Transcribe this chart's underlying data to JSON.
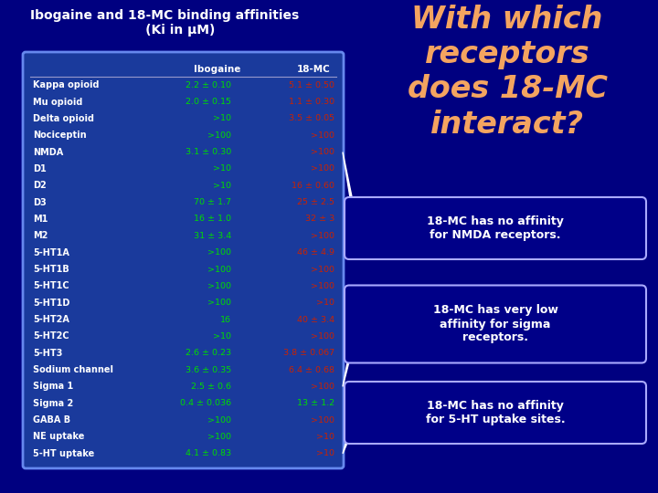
{
  "bg_color": "#000080",
  "table_bg": "#1a3a9c",
  "table_border": "#6688ee",
  "title_text": "Ibogaine and 18-MC binding affinities\n       (Ki in μM)",
  "title_color": "#ffffff",
  "big_question": "With which\nreceptors\ndoes 18-MC\ninteract?",
  "big_question_color": "#f4a460",
  "header_color": "#ffffff",
  "receptor_color": "#ffffff",
  "ibogaine_color": "#00dd00",
  "mc18_red": "#cc2200",
  "mc18_green": "#00dd00",
  "headers": [
    "",
    "Ibogaine",
    "18-MC"
  ],
  "rows": [
    [
      "Kappa opioid",
      "2.2 ± 0.10",
      "5.1 ± 0.50",
      "red"
    ],
    [
      "Mu opioid",
      "2.0 ± 0.15",
      "1.1 ± 0.30",
      "red"
    ],
    [
      "Delta opioid",
      ">10",
      "3.5 ± 0.05",
      "red"
    ],
    [
      "Nociceptin",
      ">100",
      ">100",
      "red"
    ],
    [
      "NMDA",
      "3.1 ± 0.30",
      ">100",
      "red"
    ],
    [
      "D1",
      ">10",
      ">100",
      "red"
    ],
    [
      "D2",
      ">10",
      "16 ± 0.60",
      "red"
    ],
    [
      "D3",
      "70 ± 1.7",
      "25 ± 2.5",
      "red"
    ],
    [
      "M1",
      "16 ± 1.0",
      "32 ± 3",
      "red"
    ],
    [
      "M2",
      "31 ± 3.4",
      ">100",
      "red"
    ],
    [
      "5-HT1A",
      ">100",
      "46 ± 4.9",
      "red"
    ],
    [
      "5-HT1B",
      ">100",
      ">100",
      "red"
    ],
    [
      "5-HT1C",
      ">100",
      ">100",
      "red"
    ],
    [
      "5-HT1D",
      ">100",
      ">10",
      "red"
    ],
    [
      "5-HT2A",
      "16",
      "40 ± 3.4",
      "red"
    ],
    [
      "5-HT2C",
      ">10",
      ">100",
      "red"
    ],
    [
      "5-HT3",
      "2.6 ± 0.23",
      "3.8 ± 0.067",
      "red"
    ],
    [
      "Sodium channel",
      "3.6 ± 0.35",
      "6.4 ± 0.68",
      "red"
    ],
    [
      "Sigma 1",
      "2.5 ± 0.6",
      ">100",
      "red"
    ],
    [
      "Sigma 2",
      "0.4 ± 0.036",
      "13 ± 1.2",
      "green"
    ],
    [
      "GABA B",
      ">100",
      ">100",
      "red"
    ],
    [
      "NE uptake",
      ">100",
      ">10",
      "red"
    ],
    [
      "5-HT uptake",
      "4.1 ± 0.83",
      ">10",
      "red"
    ]
  ],
  "callouts": [
    {
      "text": "18-MC has no affinity\nfor NMDA receptors.",
      "row": 4
    },
    {
      "text": "18-MC has very low\naffinity for sigma\nreceptors.",
      "row": 18
    },
    {
      "text": "18-MC has no affinity\nfor 5-HT uptake sites.",
      "row": 22
    }
  ],
  "callout_bg": "#000088",
  "callout_text_color": "#ffffff",
  "callout_border": "#aaaaff"
}
